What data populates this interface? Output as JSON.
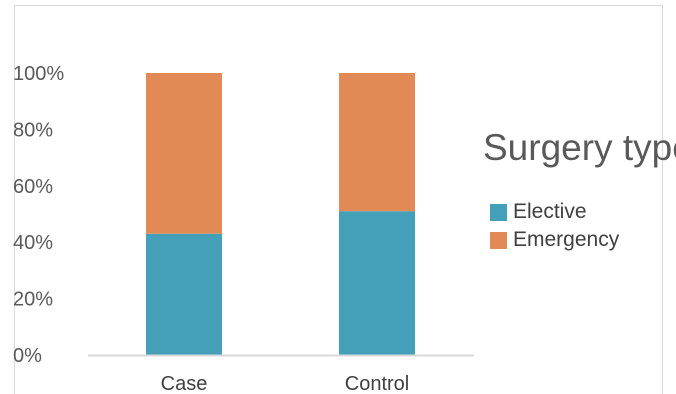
{
  "colors": {
    "elective": "#43A0B8",
    "emergency": "#E28A56",
    "axis": "#d9d9d9"
  },
  "chart_data": {
    "type": "bar",
    "stacked": true,
    "percent_stacked": true,
    "categories": [
      "Case",
      "Control"
    ],
    "series": [
      {
        "name": "Elective",
        "values": [
          43,
          51
        ]
      },
      {
        "name": "Emergency",
        "values": [
          57,
          49
        ]
      }
    ],
    "yticks": [
      "0%",
      "20%",
      "40%",
      "60%",
      "80%",
      "100%"
    ],
    "ylim": [
      0,
      100
    ],
    "grid": false,
    "legend": {
      "title": "Surgery type",
      "placement": "right"
    }
  }
}
